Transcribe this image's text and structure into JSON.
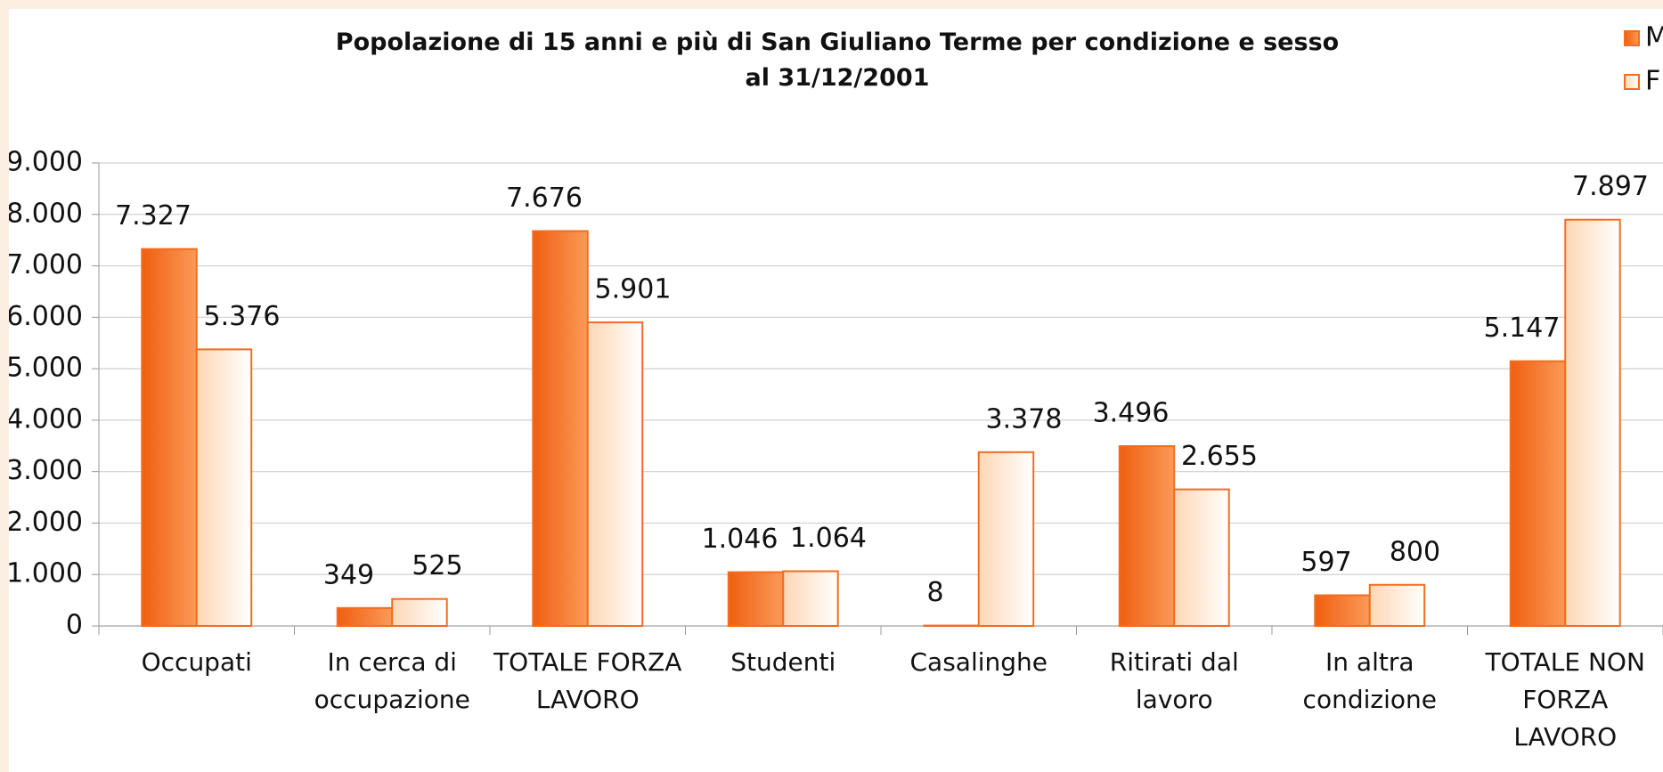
{
  "chart_data": {
    "type": "bar",
    "title": "Popolazione di 15 anni e più di San Giuliano Terme per condizione e sesso\nal 31/12/2001",
    "categories": [
      "Occupati",
      "In cerca di\noccupazione",
      "TOTALE FORZA\nLAVORO",
      "Studenti",
      "Casalinghe",
      "Ritirati dal\nlavoro",
      "In altra\ncondizione",
      "TOTALE NON\nFORZA\nLAVORO"
    ],
    "series": [
      {
        "name": "M",
        "color": "#f36d1f",
        "values": [
          7327,
          349,
          7676,
          1046,
          8,
          3496,
          597,
          5147
        ],
        "value_labels": [
          "7.327",
          "349",
          "7.676",
          "1.046",
          "8",
          "3.496",
          "597",
          "5.147"
        ]
      },
      {
        "name": "F",
        "color": "#fde2c8",
        "values": [
          5376,
          525,
          5901,
          1064,
          3378,
          2655,
          800,
          7897
        ],
        "value_labels": [
          "5.376",
          "525",
          "5.901",
          "1.064",
          "3.378",
          "2.655",
          "800",
          "7.897"
        ]
      }
    ],
    "ylim": [
      0,
      9000
    ],
    "yticks": [
      0,
      {
        "value": 1000,
        "label": "1.000"
      },
      {
        "value": 2000,
        "label": "2.000"
      },
      {
        "value": 3000,
        "label": "3.000"
      },
      {
        "value": 4000,
        "label": "4.000"
      },
      {
        "value": 5000,
        "label": "5.000"
      },
      {
        "value": 6000,
        "label": "6.000"
      },
      {
        "value": 7000,
        "label": "7.000"
      },
      {
        "value": 8000,
        "label": "8.000"
      },
      {
        "value": 9000,
        "label": "9.000"
      }
    ],
    "grid": true,
    "legend": "top-right"
  }
}
